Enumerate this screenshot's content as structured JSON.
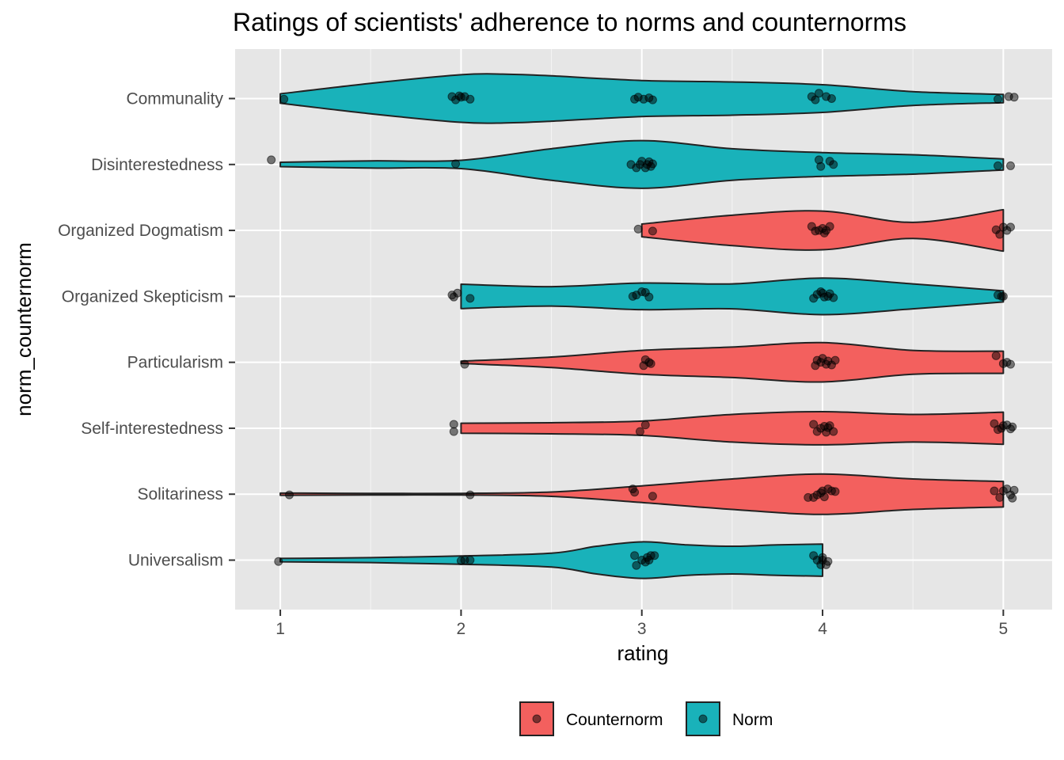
{
  "chart_data": {
    "type": "violin",
    "title": "Ratings of scientists' adherence to norms and counternorms",
    "xlabel": "rating",
    "ylabel": "norm_counternorm",
    "xlim": [
      0.75,
      5.27
    ],
    "xticks": [
      1,
      2,
      3,
      4,
      5
    ],
    "grid": true,
    "legend_position": "bottom",
    "colors": {
      "Counternorm": "#F3605E",
      "Norm": "#19B2BA",
      "outline": "#222222",
      "panel": "#E6E6E6",
      "grid": "#FFFFFF"
    },
    "legend": [
      {
        "label": "Counternorm",
        "color": "#F3605E"
      },
      {
        "label": "Norm",
        "color": "#19B2BA"
      }
    ],
    "categories": [
      {
        "name": "Universalism",
        "group": "Norm",
        "density": [
          [
            1,
            0.06
          ],
          [
            1.5,
            0.09
          ],
          [
            2,
            0.15
          ],
          [
            2.5,
            0.25
          ],
          [
            2.75,
            0.5
          ],
          [
            3,
            0.66
          ],
          [
            3.25,
            0.55
          ],
          [
            3.5,
            0.5
          ],
          [
            3.75,
            0.55
          ],
          [
            4,
            0.58
          ]
        ],
        "points": [
          [
            0.99,
            -0.02
          ],
          [
            2.0,
            -0.01
          ],
          [
            2.02,
            0.0
          ],
          [
            2.05,
            0.0
          ],
          [
            2.96,
            0.07
          ],
          [
            2.97,
            -0.08
          ],
          [
            3.0,
            0.0
          ],
          [
            3.02,
            -0.03
          ],
          [
            3.03,
            0.04
          ],
          [
            3.05,
            0.07
          ],
          [
            3.07,
            0.07
          ],
          [
            3.04,
            0.0
          ],
          [
            3.95,
            0.07
          ],
          [
            3.97,
            0.0
          ],
          [
            3.99,
            -0.07
          ],
          [
            4.0,
            0.04
          ],
          [
            4.02,
            -0.07
          ],
          [
            4.0,
            0.0
          ],
          [
            4.03,
            -0.02
          ]
        ]
      },
      {
        "name": "Solitariness",
        "group": "Counternorm",
        "density": [
          [
            1,
            0.04
          ],
          [
            1.5,
            0.03
          ],
          [
            2,
            0.03
          ],
          [
            2.5,
            0.08
          ],
          [
            3,
            0.3
          ],
          [
            3.5,
            0.55
          ],
          [
            4,
            0.73
          ],
          [
            4.5,
            0.55
          ],
          [
            5,
            0.46
          ]
        ],
        "points": [
          [
            1.05,
            -0.01
          ],
          [
            2.05,
            -0.01
          ],
          [
            2.95,
            0.08
          ],
          [
            2.96,
            0.03
          ],
          [
            3.06,
            -0.03
          ],
          [
            3.92,
            -0.05
          ],
          [
            3.95,
            -0.05
          ],
          [
            3.97,
            -0.01
          ],
          [
            3.99,
            0.02
          ],
          [
            4.0,
            0.05
          ],
          [
            4.01,
            -0.04
          ],
          [
            4.03,
            0.08
          ],
          [
            4.05,
            0.05
          ],
          [
            4.07,
            0.04
          ],
          [
            4.95,
            0.05
          ],
          [
            4.98,
            -0.05
          ],
          [
            5.0,
            0.05
          ],
          [
            5.02,
            0.08
          ],
          [
            5.04,
            -0.01
          ],
          [
            5.05,
            -0.06
          ],
          [
            5.06,
            0.06
          ]
        ]
      },
      {
        "name": "Self-interestedness",
        "group": "Counternorm",
        "density": [
          [
            2,
            0.18
          ],
          [
            2.5,
            0.2
          ],
          [
            3,
            0.26
          ],
          [
            3.5,
            0.5
          ],
          [
            4,
            0.6
          ],
          [
            4.5,
            0.5
          ],
          [
            5,
            0.58
          ]
        ],
        "points": [
          [
            1.96,
            0.06
          ],
          [
            1.96,
            -0.05
          ],
          [
            2.99,
            -0.05
          ],
          [
            3.02,
            0.05
          ],
          [
            3.95,
            0.06
          ],
          [
            3.97,
            -0.05
          ],
          [
            3.99,
            0.0
          ],
          [
            4.01,
            0.03
          ],
          [
            4.02,
            -0.06
          ],
          [
            4.03,
            0.01
          ],
          [
            4.04,
            0.04
          ],
          [
            4.06,
            -0.05
          ],
          [
            4.95,
            0.07
          ],
          [
            4.97,
            -0.02
          ],
          [
            4.99,
            0.0
          ],
          [
            5.0,
            0.04
          ],
          [
            5.02,
            0.05
          ],
          [
            5.04,
            -0.01
          ],
          [
            5.05,
            0.02
          ]
        ]
      },
      {
        "name": "Particularism",
        "group": "Counternorm",
        "density": [
          [
            2,
            0.04
          ],
          [
            2.5,
            0.19
          ],
          [
            3,
            0.43
          ],
          [
            3.5,
            0.55
          ],
          [
            4,
            0.71
          ],
          [
            4.5,
            0.43
          ],
          [
            5,
            0.4
          ]
        ],
        "points": [
          [
            2.02,
            -0.03
          ],
          [
            3.01,
            -0.05
          ],
          [
            3.02,
            0.04
          ],
          [
            3.04,
            0.0
          ],
          [
            3.05,
            -0.02
          ],
          [
            3.96,
            -0.05
          ],
          [
            3.97,
            0.03
          ],
          [
            3.99,
            0.0
          ],
          [
            4.0,
            0.06
          ],
          [
            4.02,
            -0.03
          ],
          [
            4.03,
            0.02
          ],
          [
            4.05,
            -0.04
          ],
          [
            4.07,
            0.03
          ],
          [
            4.96,
            0.1
          ],
          [
            5.0,
            -0.02
          ],
          [
            5.02,
            0.0
          ],
          [
            5.04,
            -0.03
          ]
        ]
      },
      {
        "name": "Organized Skepticism",
        "group": "Norm",
        "density": [
          [
            2,
            0.44
          ],
          [
            2.5,
            0.35
          ],
          [
            3,
            0.48
          ],
          [
            3.5,
            0.45
          ],
          [
            4,
            0.66
          ],
          [
            4.5,
            0.45
          ],
          [
            5,
            0.2
          ]
        ],
        "points": [
          [
            1.95,
            0.02
          ],
          [
            1.96,
            -0.01
          ],
          [
            1.98,
            0.05
          ],
          [
            2.05,
            -0.03
          ],
          [
            2.95,
            0.0
          ],
          [
            2.97,
            0.02
          ],
          [
            3.0,
            0.07
          ],
          [
            3.02,
            0.06
          ],
          [
            3.04,
            -0.01
          ],
          [
            3.95,
            -0.03
          ],
          [
            3.97,
            0.03
          ],
          [
            3.99,
            0.07
          ],
          [
            4.0,
            0.05
          ],
          [
            4.01,
            -0.01
          ],
          [
            4.03,
            0.0
          ],
          [
            4.04,
            0.04
          ],
          [
            4.06,
            -0.02
          ],
          [
            4.97,
            0.02
          ],
          [
            4.99,
            0.0
          ],
          [
            5.0,
            0.0
          ]
        ]
      },
      {
        "name": "Organized Dogmatism",
        "group": "Counternorm",
        "density": [
          [
            3,
            0.23
          ],
          [
            3.5,
            0.55
          ],
          [
            4,
            0.7
          ],
          [
            4.5,
            0.29
          ],
          [
            5,
            0.75
          ]
        ],
        "points": [
          [
            2.98,
            0.02
          ],
          [
            3.06,
            -0.01
          ],
          [
            3.94,
            0.06
          ],
          [
            3.96,
            -0.01
          ],
          [
            3.98,
            0.0
          ],
          [
            4.0,
            0.03
          ],
          [
            4.01,
            -0.04
          ],
          [
            4.02,
            0.0
          ],
          [
            4.04,
            0.06
          ],
          [
            4.96,
            0.01
          ],
          [
            4.98,
            -0.06
          ],
          [
            5.0,
            0.05
          ],
          [
            5.02,
            0.0
          ],
          [
            5.04,
            0.05
          ]
        ]
      },
      {
        "name": "Disinterestedness",
        "group": "Norm",
        "density": [
          [
            1,
            0.08
          ],
          [
            1.5,
            0.13
          ],
          [
            2,
            0.15
          ],
          [
            2.5,
            0.57
          ],
          [
            3,
            0.86
          ],
          [
            3.5,
            0.57
          ],
          [
            4,
            0.43
          ],
          [
            4.5,
            0.35
          ],
          [
            5,
            0.2
          ]
        ],
        "points": [
          [
            0.95,
            0.07
          ],
          [
            1.97,
            0.01
          ],
          [
            2.94,
            0.0
          ],
          [
            2.97,
            -0.05
          ],
          [
            2.99,
            0.0
          ],
          [
            3.0,
            0.05
          ],
          [
            3.02,
            -0.05
          ],
          [
            3.03,
            0.0
          ],
          [
            3.04,
            0.04
          ],
          [
            3.05,
            -0.03
          ],
          [
            3.06,
            0.01
          ],
          [
            3.98,
            0.07
          ],
          [
            3.99,
            -0.03
          ],
          [
            4.04,
            0.05
          ],
          [
            4.06,
            0.0
          ],
          [
            4.97,
            -0.02
          ],
          [
            5.04,
            -0.02
          ]
        ]
      },
      {
        "name": "Communality",
        "group": "Norm",
        "density": [
          [
            1,
            0.17
          ],
          [
            1.5,
            0.55
          ],
          [
            2,
            0.86
          ],
          [
            2.25,
            0.88
          ],
          [
            2.5,
            0.82
          ],
          [
            3,
            0.65
          ],
          [
            3.5,
            0.6
          ],
          [
            4,
            0.5
          ],
          [
            4.5,
            0.25
          ],
          [
            5,
            0.15
          ]
        ],
        "points": [
          [
            1.02,
            -0.01
          ],
          [
            1.95,
            0.03
          ],
          [
            1.97,
            -0.02
          ],
          [
            1.99,
            0.04
          ],
          [
            2.0,
            0.02
          ],
          [
            2.02,
            0.03
          ],
          [
            2.05,
            -0.01
          ],
          [
            2.96,
            -0.01
          ],
          [
            2.98,
            0.02
          ],
          [
            3.01,
            -0.01
          ],
          [
            3.04,
            0.01
          ],
          [
            3.06,
            -0.02
          ],
          [
            3.94,
            0.03
          ],
          [
            3.96,
            -0.02
          ],
          [
            3.98,
            0.08
          ],
          [
            4.02,
            0.03
          ],
          [
            4.05,
            0.0
          ],
          [
            4.97,
            -0.01
          ],
          [
            5.03,
            0.03
          ],
          [
            5.06,
            0.02
          ]
        ]
      }
    ]
  }
}
